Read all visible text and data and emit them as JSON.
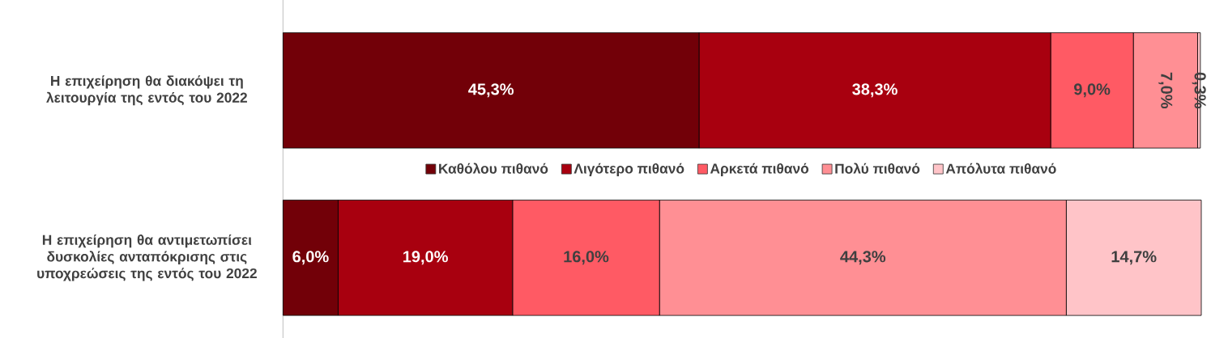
{
  "chart_data": {
    "type": "bar",
    "orientation": "horizontal",
    "stacked": true,
    "legend": "center",
    "categories": [
      "Η επιχείρηση θα διακόψει τη λειτουργία της εντός του 2022",
      "Η επιχείρηση θα αντιμετωπίσει δυσκολίες ανταπόκρισης στις υποχρεώσεις της εντός του 2022"
    ],
    "series": [
      {
        "name": "Καθόλου πιθανό",
        "color": "#720008",
        "values": [
          45.3,
          6.0
        ],
        "value_labels": [
          "45,3%",
          "6,0%"
        ]
      },
      {
        "name": "Λιγότερο πιθανό",
        "color": "#a8000f",
        "values": [
          38.3,
          19.0
        ],
        "value_labels": [
          "38,3%",
          "19,0%"
        ]
      },
      {
        "name": "Αρκετά πιθανό",
        "color": "#ff5a64",
        "values": [
          9.0,
          16.0
        ],
        "value_labels": [
          "9,0%",
          "16,0%"
        ]
      },
      {
        "name": "Πολύ πιθανό",
        "color": "#ff8f94",
        "values": [
          7.0,
          44.3
        ],
        "value_labels": [
          "7,0%",
          "44,3%"
        ]
      },
      {
        "name": "Απόλυτα πιθανό",
        "color": "#ffc4c8",
        "values": [
          0.3,
          14.7
        ],
        "value_labels": [
          "0,3%",
          "14,7%"
        ]
      }
    ]
  }
}
